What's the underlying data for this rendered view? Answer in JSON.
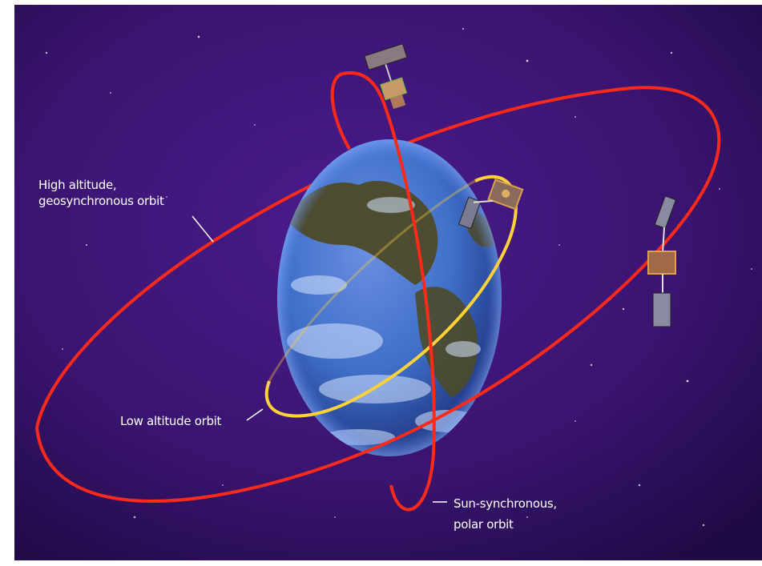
{
  "labels": {
    "geo_line1": "High altitude,",
    "geo_line2": "geosynchronous orbit",
    "low": "Low altitude orbit",
    "sun_line1": "Sun-synchronous,",
    "sun_line2": "polar orbit"
  },
  "colors": {
    "space": "#3a1470",
    "earth_ocean": "#3f6fc9",
    "land": "#4d4a28",
    "high_orbit": "#ff2a1a",
    "low_orbit": "#ffd23a",
    "polar_orbit": "#ff2a1a"
  }
}
